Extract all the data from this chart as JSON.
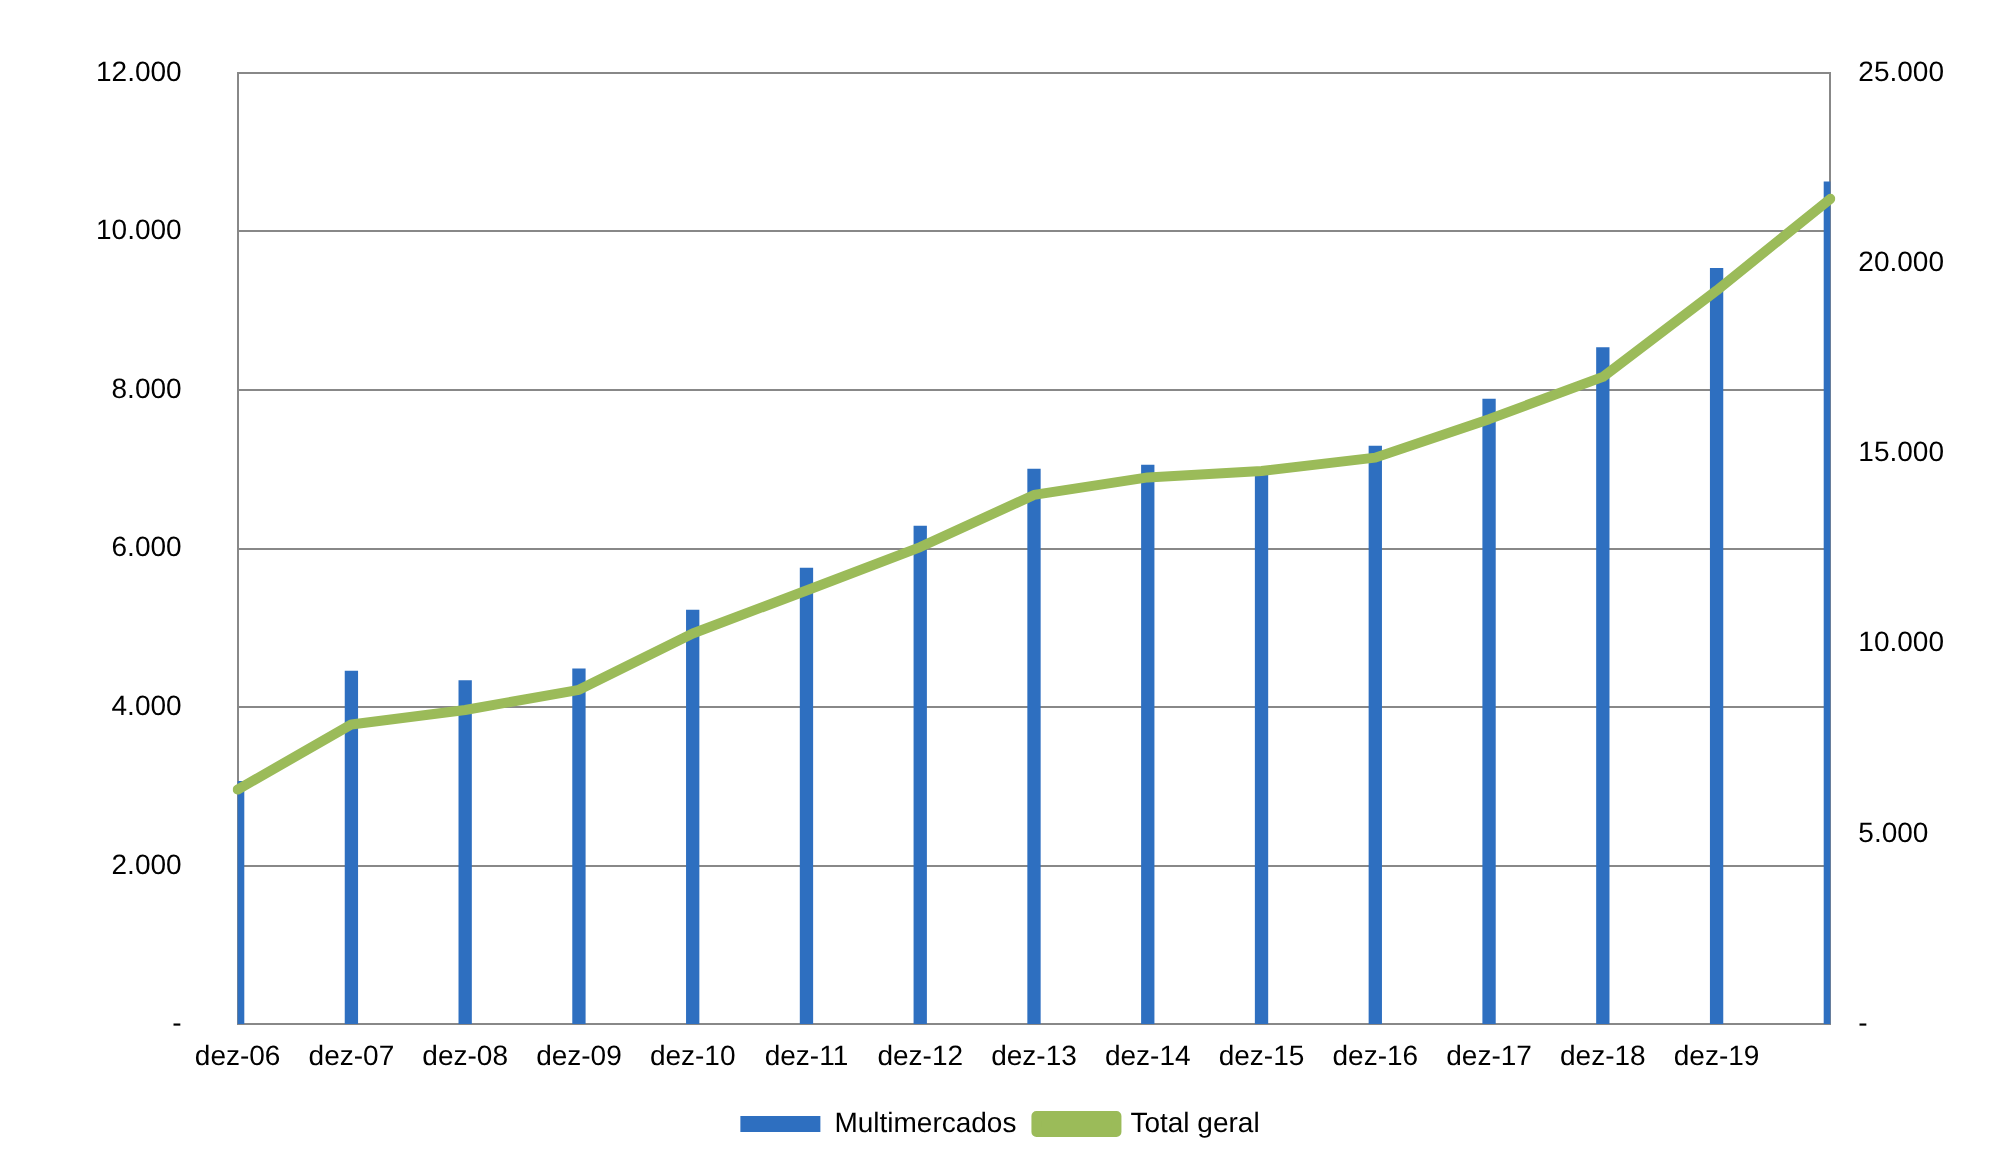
{
  "chart_data": {
    "type": "bar",
    "categories": [
      "dez-06",
      "dez-07",
      "dez-08",
      "dez-09",
      "dez-10",
      "dez-11",
      "dez-12",
      "dez-13",
      "dez-14",
      "dez-15",
      "dez-16",
      "dez-17",
      "dez-18",
      "dez-19",
      null
    ],
    "series": [
      {
        "name": "Multimercados",
        "color": "#2e6fc0",
        "values": [
          3060,
          4450,
          4330,
          4480,
          5220,
          5750,
          6280,
          7000,
          7050,
          6930,
          7290,
          7880,
          8530,
          9530,
          10620
        ]
      },
      {
        "name": "Total geral",
        "type": "line",
        "axis": "y2",
        "color": "#9bbb59",
        "values": [
          6170,
          7880,
          8260,
          8790,
          10270,
          11400,
          12540,
          13910,
          14370,
          14540,
          14890,
          15900,
          17010,
          19280,
          21690
        ]
      }
    ],
    "ylim": [
      0,
      12000
    ],
    "yticks": [
      {
        "value": 0,
        "label": "-"
      },
      {
        "value": 2000,
        "label": "2.000"
      },
      {
        "value": 4000,
        "label": "4.000"
      },
      {
        "value": 6000,
        "label": "6.000"
      },
      {
        "value": 8000,
        "label": "8.000"
      },
      {
        "value": 10000,
        "label": "10.000"
      },
      {
        "value": 12000,
        "label": "12.000"
      }
    ],
    "y2lim": [
      0,
      25000
    ],
    "y2ticks": [
      {
        "value": 0,
        "label": "-"
      },
      {
        "value": 5000,
        "label": "5.000"
      },
      {
        "value": 10000,
        "label": "10.000"
      },
      {
        "value": 15000,
        "label": "15.000"
      },
      {
        "value": 20000,
        "label": "20.000"
      },
      {
        "value": 25000,
        "label": "25.000"
      }
    ],
    "grid": "y",
    "legend": "bottom",
    "marker": "none"
  }
}
